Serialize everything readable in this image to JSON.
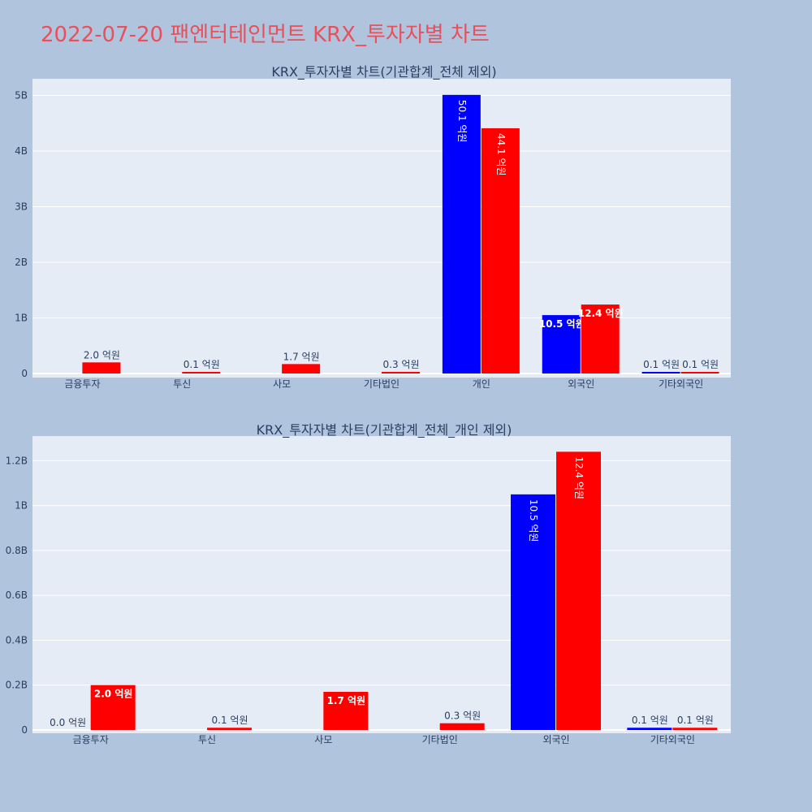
{
  "page_title": "2022-07-20 팬엔터테인먼트 KRX_투자자별 차트",
  "colors": {
    "background": "#b0c4de",
    "plot_bg": "#e5ecf6",
    "title": "#e8505b",
    "series_a": "#0000ff",
    "series_b": "#ff0000"
  },
  "chart_data": [
    {
      "type": "bar",
      "title": "KRX_투자자별 차트(기관합계_전체 제외)",
      "categories": [
        "금융투자",
        "투신",
        "사모",
        "기타법인",
        "개인",
        "외국인",
        "기타외국인"
      ],
      "yticks": [
        {
          "value": 0,
          "label": "0"
        },
        {
          "value": 1000000000,
          "label": "1B"
        },
        {
          "value": 2000000000,
          "label": "2B"
        },
        {
          "value": 3000000000,
          "label": "3B"
        },
        {
          "value": 4000000000,
          "label": "4B"
        },
        {
          "value": 5000000000,
          "label": "5B"
        }
      ],
      "ylim": [
        0,
        5300000000
      ],
      "grid": true,
      "series": [
        {
          "color": "#0000ff",
          "values": [
            null,
            null,
            null,
            null,
            5010000000,
            1050000000,
            10000000
          ],
          "labels": [
            null,
            null,
            null,
            null,
            "50.1 억원",
            "10.5 억원",
            "0.1 억원"
          ],
          "label_pos": [
            null,
            null,
            null,
            null,
            "inside",
            "inside",
            "outside"
          ]
        },
        {
          "color": "#ff0000",
          "values": [
            200000000,
            10000000,
            170000000,
            30000000,
            4410000000,
            1240000000,
            10000000
          ],
          "labels": [
            "2.0 억원",
            "0.1 억원",
            "1.7 억원",
            "0.3 억원",
            "44.1 억원",
            "12.4 억원",
            "0.1 억원"
          ],
          "label_pos": [
            "outside",
            "outside",
            "outside",
            "outside",
            "inside",
            "inside",
            "outside"
          ]
        }
      ]
    },
    {
      "type": "bar",
      "title": "KRX_투자자별 차트(기관합계_전체_개인 제외)",
      "categories": [
        "금융투자",
        "투신",
        "사모",
        "기타법인",
        "외국인",
        "기타외국인"
      ],
      "yticks": [
        {
          "value": 0,
          "label": "0"
        },
        {
          "value": 200000000,
          "label": "0.2B"
        },
        {
          "value": 400000000,
          "label": "0.4B"
        },
        {
          "value": 600000000,
          "label": "0.6B"
        },
        {
          "value": 800000000,
          "label": "0.8B"
        },
        {
          "value": 1000000000,
          "label": "1B"
        },
        {
          "value": 1200000000,
          "label": "1.2B"
        }
      ],
      "ylim": [
        0,
        1310000000
      ],
      "grid": true,
      "series": [
        {
          "color": "#0000ff",
          "values": [
            0,
            null,
            null,
            null,
            1050000000,
            10000000
          ],
          "labels": [
            "0.0 억원",
            null,
            null,
            null,
            "10.5 억원",
            "0.1 억원"
          ],
          "label_pos": [
            "outside",
            null,
            null,
            null,
            "inside",
            "outside"
          ]
        },
        {
          "color": "#ff0000",
          "values": [
            200000000,
            10000000,
            170000000,
            30000000,
            1240000000,
            10000000
          ],
          "labels": [
            "2.0 억원",
            "0.1 억원",
            "1.7 억원",
            "0.3 억원",
            "12.4 억원",
            "0.1 억원"
          ],
          "label_pos": [
            "inside",
            "outside",
            "inside",
            "outside",
            "inside",
            "outside"
          ]
        }
      ]
    }
  ]
}
